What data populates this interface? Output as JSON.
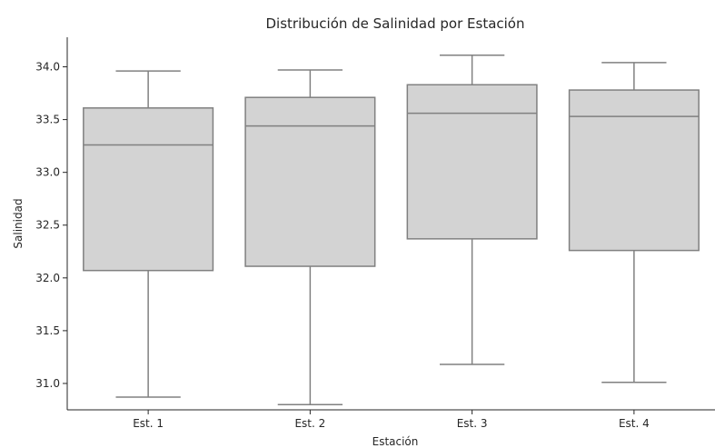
{
  "chart_data": {
    "type": "boxplot",
    "title": "Distribución de Salinidad por Estación",
    "xlabel": "Estación",
    "ylabel": "Salinidad",
    "ylim": [
      30.75,
      34.28
    ],
    "yticks": [
      "31.0",
      "31.5",
      "32.0",
      "32.5",
      "33.0",
      "33.5",
      "34.0"
    ],
    "categories": [
      "Est. 1",
      "Est. 2",
      "Est. 3",
      "Est. 4"
    ],
    "boxes": [
      {
        "whisker_low": 30.87,
        "q1": 32.07,
        "median": 33.26,
        "q3": 33.61,
        "whisker_high": 33.96
      },
      {
        "whisker_low": 30.8,
        "q1": 32.11,
        "median": 33.44,
        "q3": 33.71,
        "whisker_high": 33.97
      },
      {
        "whisker_low": 31.18,
        "q1": 32.37,
        "median": 33.56,
        "q3": 33.83,
        "whisker_high": 34.11
      },
      {
        "whisker_low": 31.01,
        "q1": 32.26,
        "median": 33.53,
        "q3": 33.78,
        "whisker_high": 34.04
      }
    ],
    "box_color": "#d3d3d3",
    "line_color": "#808080",
    "grid": false,
    "legend": false
  }
}
